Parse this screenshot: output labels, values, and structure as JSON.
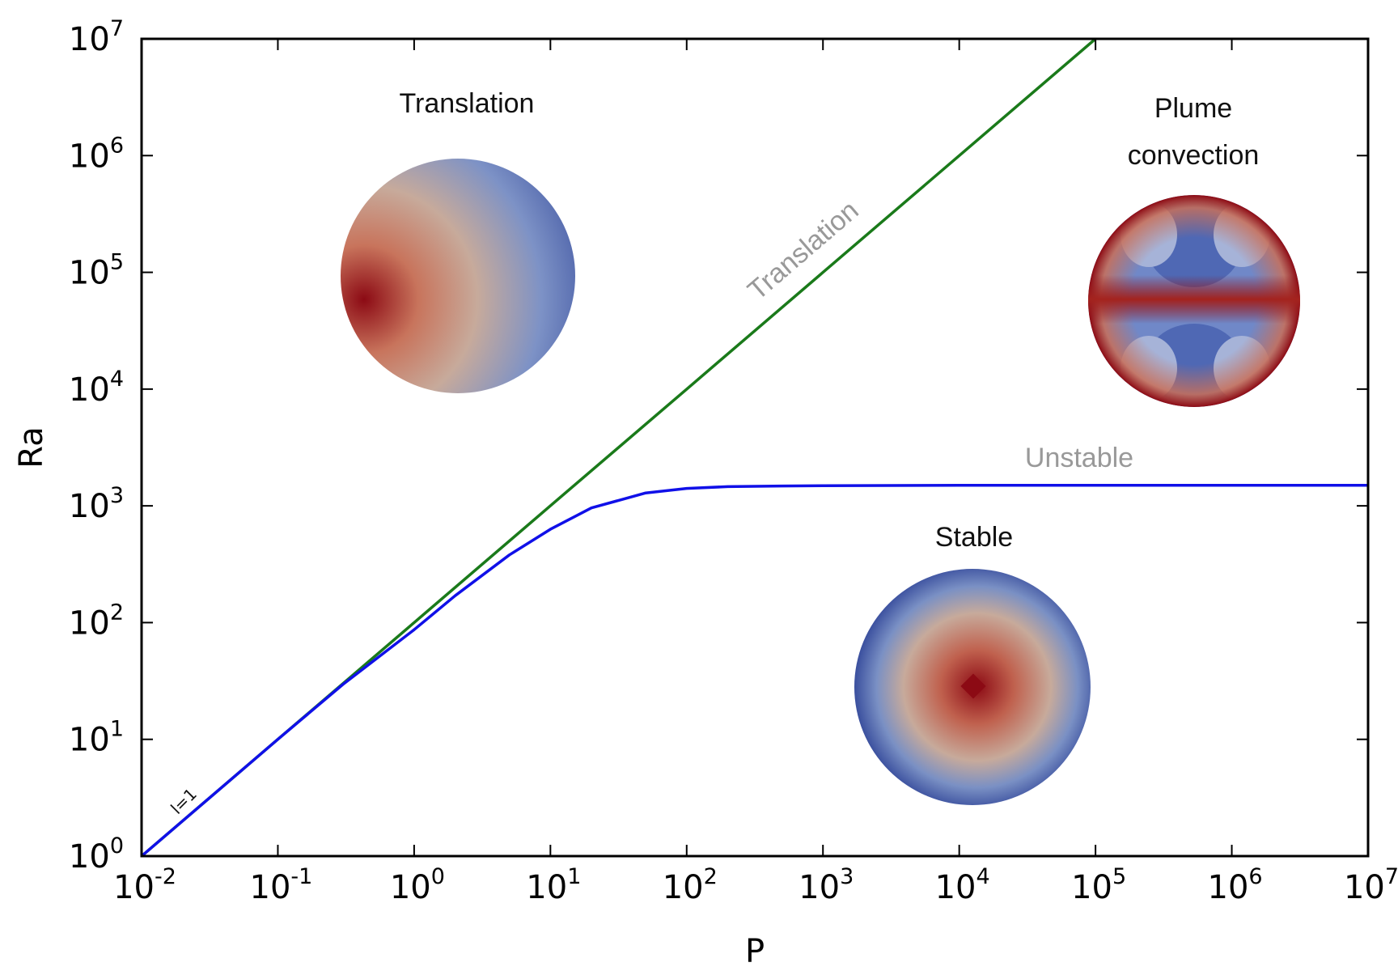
{
  "chart_data": {
    "type": "line",
    "title": "",
    "xlabel": "P",
    "ylabel": "Ra",
    "xscale": "log",
    "yscale": "log",
    "xlim": [
      0.01,
      10000000
    ],
    "ylim": [
      1,
      10000000
    ],
    "x_ticks": [
      {
        "base": "10",
        "exp": "-2"
      },
      {
        "base": "10",
        "exp": "-1"
      },
      {
        "base": "10",
        "exp": "0"
      },
      {
        "base": "10",
        "exp": "1"
      },
      {
        "base": "10",
        "exp": "2"
      },
      {
        "base": "10",
        "exp": "3"
      },
      {
        "base": "10",
        "exp": "4"
      },
      {
        "base": "10",
        "exp": "5"
      },
      {
        "base": "10",
        "exp": "6"
      },
      {
        "base": "10",
        "exp": "7"
      }
    ],
    "y_ticks": [
      {
        "base": "10",
        "exp": "0"
      },
      {
        "base": "10",
        "exp": "1"
      },
      {
        "base": "10",
        "exp": "2"
      },
      {
        "base": "10",
        "exp": "3"
      },
      {
        "base": "10",
        "exp": "4"
      },
      {
        "base": "10",
        "exp": "5"
      },
      {
        "base": "10",
        "exp": "6"
      },
      {
        "base": "10",
        "exp": "7"
      }
    ],
    "grid": false,
    "series": [
      {
        "name": "Translation",
        "color": "#1a7a1a",
        "x": [
          0.01,
          0.1,
          1,
          10,
          100,
          1000,
          10000,
          100000
        ],
        "y": [
          1,
          10,
          100,
          1000,
          10000,
          100000,
          1000000,
          10000000
        ]
      },
      {
        "name": "Unstable",
        "color": "#1010e8",
        "x": [
          0.01,
          0.1,
          0.3,
          1,
          2,
          5,
          10,
          20,
          50,
          100,
          200,
          500,
          1000,
          10000,
          100000,
          1000000,
          10000000
        ],
        "y": [
          1,
          10,
          29.5,
          87,
          170,
          380,
          630,
          960,
          1290,
          1410,
          1460,
          1480,
          1490,
          1500,
          1500,
          1500,
          1500
        ]
      }
    ],
    "annotations": {
      "line_label": "l=1",
      "regions": [
        {
          "key": "translation",
          "lines": [
            "Translation"
          ]
        },
        {
          "key": "plume",
          "lines": [
            "Plume",
            "convection"
          ]
        },
        {
          "key": "stable",
          "lines": [
            "Stable"
          ]
        }
      ]
    },
    "inset_colors": {
      "hot": "#8c0a14",
      "mid": "#c7aa9b",
      "cold": "#3a4f9e"
    }
  }
}
